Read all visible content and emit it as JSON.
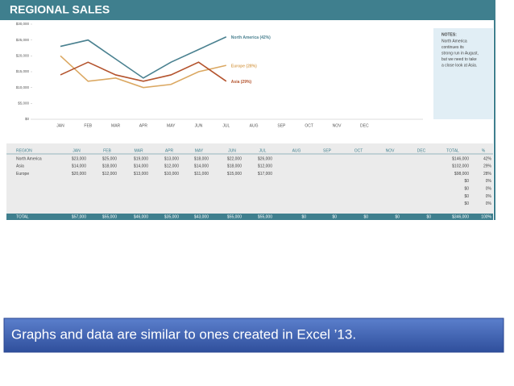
{
  "header": {
    "title": "REGIONAL SALES"
  },
  "chart_data": {
    "type": "line",
    "categories": [
      "JAN",
      "FEB",
      "MAR",
      "APR",
      "MAY",
      "JUN",
      "JUL",
      "AUG",
      "SEP",
      "OCT",
      "NOV",
      "DEC"
    ],
    "series": [
      {
        "name": "North America (42%)",
        "color": "#4a8190",
        "values": [
          23000,
          25000,
          19000,
          13000,
          18000,
          22000,
          26000,
          null,
          null,
          null,
          null,
          null
        ]
      },
      {
        "name": "Europe (28%)",
        "color": "#dba862",
        "values": [
          20000,
          12000,
          13000,
          10000,
          11000,
          15000,
          17000,
          null,
          null,
          null,
          null,
          null
        ]
      },
      {
        "name": "Asia (29%)",
        "color": "#b4532d",
        "values": [
          14000,
          18000,
          14000,
          12000,
          14000,
          18000,
          12000,
          null,
          null,
          null,
          null,
          null
        ]
      }
    ],
    "ylim": [
      0,
      30000
    ],
    "yticks": [
      {
        "value": 0,
        "label": "$0"
      },
      {
        "value": 5000,
        "label": "$5,000"
      },
      {
        "value": 10000,
        "label": "$10,000"
      },
      {
        "value": 15000,
        "label": "$15,000"
      },
      {
        "value": 20000,
        "label": "$20,000"
      },
      {
        "value": 25000,
        "label": "$25,000"
      },
      {
        "value": 30000,
        "label": "$30,000"
      }
    ]
  },
  "notes": {
    "title": "NOTES:",
    "text": [
      "North America",
      "continues its",
      "strong run in August,",
      "but we need to take",
      "a close look at Asia."
    ]
  },
  "table": {
    "header": [
      "REGION",
      "JAN",
      "FEB",
      "MAR",
      "APR",
      "MAY",
      "JUN",
      "JUL",
      "AUG",
      "SEP",
      "OCT",
      "NOV",
      "DEC",
      "TOTAL",
      "%"
    ],
    "rows": [
      {
        "region": "North America",
        "months": [
          "$23,000",
          "$25,000",
          "$19,000",
          "$13,000",
          "$18,000",
          "$22,000",
          "$26,000"
        ],
        "total": "$146,000",
        "pct": "42%"
      },
      {
        "region": "Asia",
        "months": [
          "$14,000",
          "$18,000",
          "$14,000",
          "$12,000",
          "$14,000",
          "$18,000",
          "$12,000"
        ],
        "total": "$102,000",
        "pct": "29%"
      },
      {
        "region": "Europe",
        "months": [
          "$20,000",
          "$12,000",
          "$13,000",
          "$10,000",
          "$11,000",
          "$15,000",
          "$17,000"
        ],
        "total": "$98,000",
        "pct": "28%"
      },
      {
        "total": "$0",
        "pct": "0%"
      },
      {
        "total": "$0",
        "pct": "0%"
      },
      {
        "total": "$0",
        "pct": "0%"
      },
      {
        "total": "$0",
        "pct": "0%"
      }
    ],
    "total_row": {
      "region": "TOTAL",
      "months": [
        "$57,000",
        "$55,000",
        "$46,000",
        "$35,000",
        "$43,000",
        "$55,000",
        "$55,000",
        "$0",
        "$0",
        "$0",
        "$0",
        "$0"
      ],
      "total": "$346,000",
      "pct": "100%"
    }
  },
  "caption": "Graphs and data are similar to ones created in Excel ’13."
}
